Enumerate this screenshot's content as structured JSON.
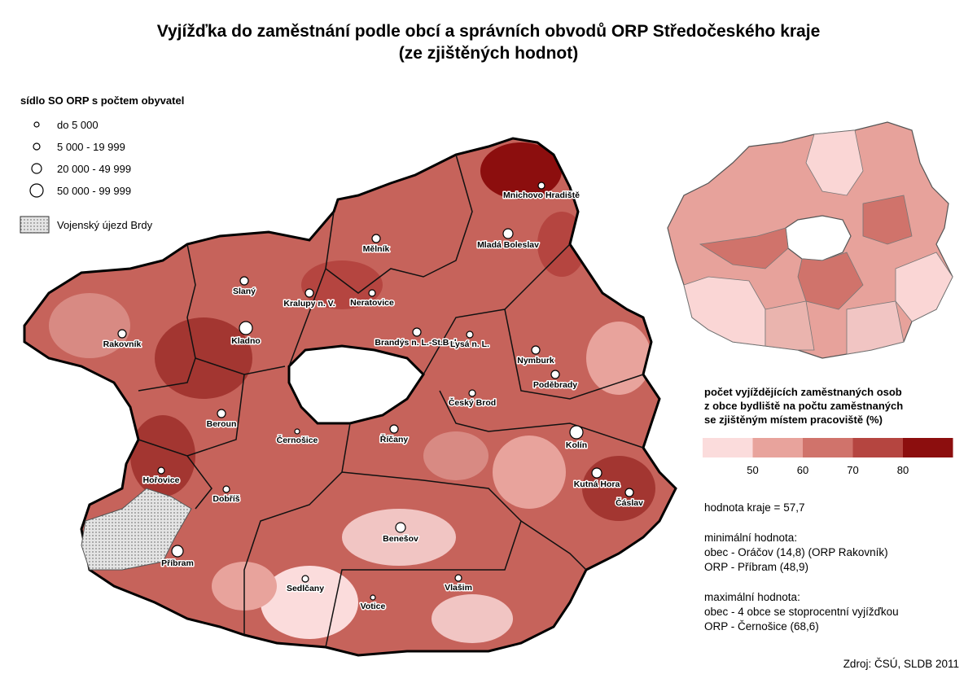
{
  "title": [
    "Vyjížďka do zaměstnání podle obcí a správních obvodů ORP Středočeského kraje",
    "(ze zjištěných hodnot)"
  ],
  "settlement_legend": {
    "title": "sídlo SO ORP s počtem obyvatel",
    "classes": [
      "do 5 000",
      "5 000 - 19 999",
      "20 000 - 49 999",
      "50 000 - 99 999"
    ]
  },
  "brdy_legend": "Vojenský újezd Brdy",
  "scale_legend": {
    "title": [
      "počet vyjíždějících zaměstnaných osob",
      "z obce bydliště na počtu zaměstnaných",
      "se zjištěným místem pracoviště (%)"
    ],
    "colors": [
      "#fbdcdc",
      "#e8a39c",
      "#d0736b",
      "#b54540",
      "#8c0e0e"
    ],
    "breaks": [
      50,
      60,
      70,
      80
    ]
  },
  "notes": [
    "hodnota kraje = 57,7",
    "minimální hodnota:",
    "obec - Oráčov (14,8) (ORP Rakovník)",
    "ORP - Příbram (48,9)",
    "maximální hodnota:",
    "obec - 4 obce se stoprocentní vyjížďkou",
    "ORP - Černošice (68,6)"
  ],
  "source": "Zdroj: ČSÚ, SLDB 2011",
  "cities": [
    "Mnichovo Hradiště",
    "Mladá Boleslav",
    "Mělník",
    "Slaný",
    "Kralupy n. V.",
    "Neratovice",
    "Rakovník",
    "Kladno",
    "Brandýs n. L.-St.Bol.",
    "Lysá n. L.",
    "Nymburk",
    "Poděbrady",
    "Český Brod",
    "Beroun",
    "Černošice",
    "Říčany",
    "Kolín",
    "Hořovice",
    "Kutná Hora",
    "Čáslav",
    "Dobříš",
    "Benešov",
    "Příbram",
    "Sedlčany",
    "Vlašim",
    "Votice"
  ]
}
